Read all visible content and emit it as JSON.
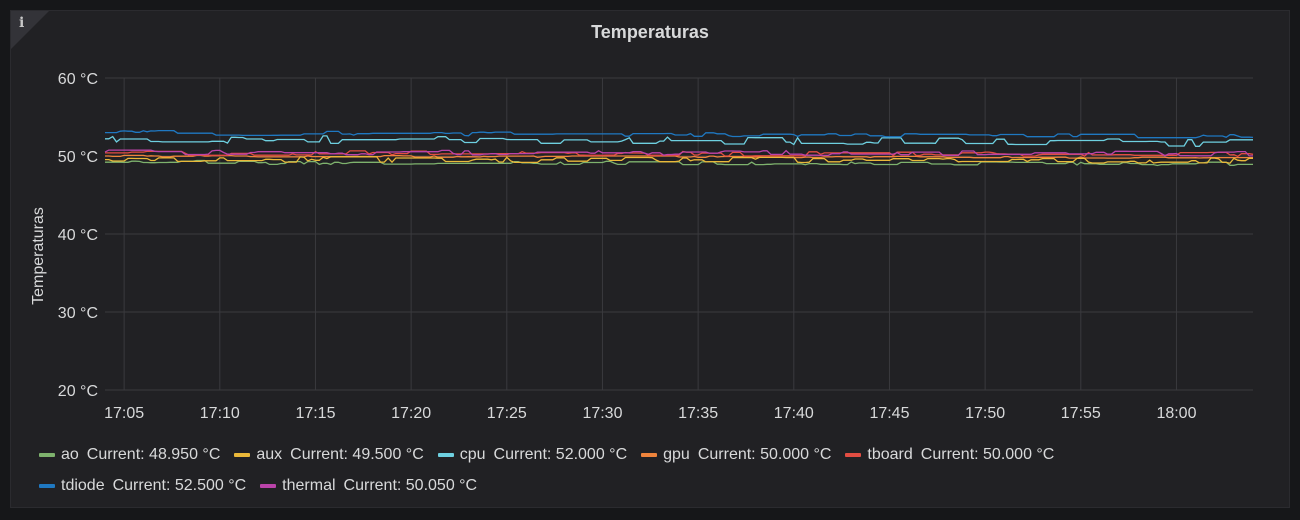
{
  "panel": {
    "title": "Temperaturas",
    "info_icon": "info-icon"
  },
  "chart_data": {
    "type": "line",
    "title": "Temperaturas",
    "ylabel": "Temperaturas",
    "xlabel": "",
    "ylim": [
      20,
      60
    ],
    "y_ticks": [
      "20 °C",
      "30 °C",
      "40 °C",
      "50 °C",
      "60 °C"
    ],
    "y_tick_values": [
      20,
      30,
      40,
      50,
      60
    ],
    "x_ticks": [
      "17:05",
      "17:10",
      "17:15",
      "17:20",
      "17:25",
      "17:30",
      "17:35",
      "17:40",
      "17:45",
      "17:50",
      "17:55",
      "18:00"
    ],
    "x_range_minutes": [
      1024,
      1084
    ],
    "grid": true,
    "legend_position": "bottom",
    "series": [
      {
        "name": "ao",
        "color": "#7eb26d",
        "current": "Current: 48.950 °C",
        "base": 49.2,
        "jitter": 0.25
      },
      {
        "name": "aux",
        "color": "#eab839",
        "current": "Current: 49.500 °C",
        "base": 49.6,
        "jitter": 0.35
      },
      {
        "name": "cpu",
        "color": "#6ed0e0",
        "current": "Current: 52.000 °C",
        "base": 52.2,
        "jitter": 0.5
      },
      {
        "name": "gpu",
        "color": "#ef843c",
        "current": "Current: 50.000 °C",
        "base": 50.0,
        "jitter": 0.1
      },
      {
        "name": "tboard",
        "color": "#e24d42",
        "current": "Current: 50.000 °C",
        "base": 50.4,
        "jitter": 0.3
      },
      {
        "name": "tdiode",
        "color": "#1f78c1",
        "current": "Current: 52.500 °C",
        "base": 53.0,
        "jitter": 0.3
      },
      {
        "name": "thermal",
        "color": "#ba43a9",
        "current": "Current: 50.050 °C",
        "base": 50.5,
        "jitter": 0.3
      }
    ]
  }
}
